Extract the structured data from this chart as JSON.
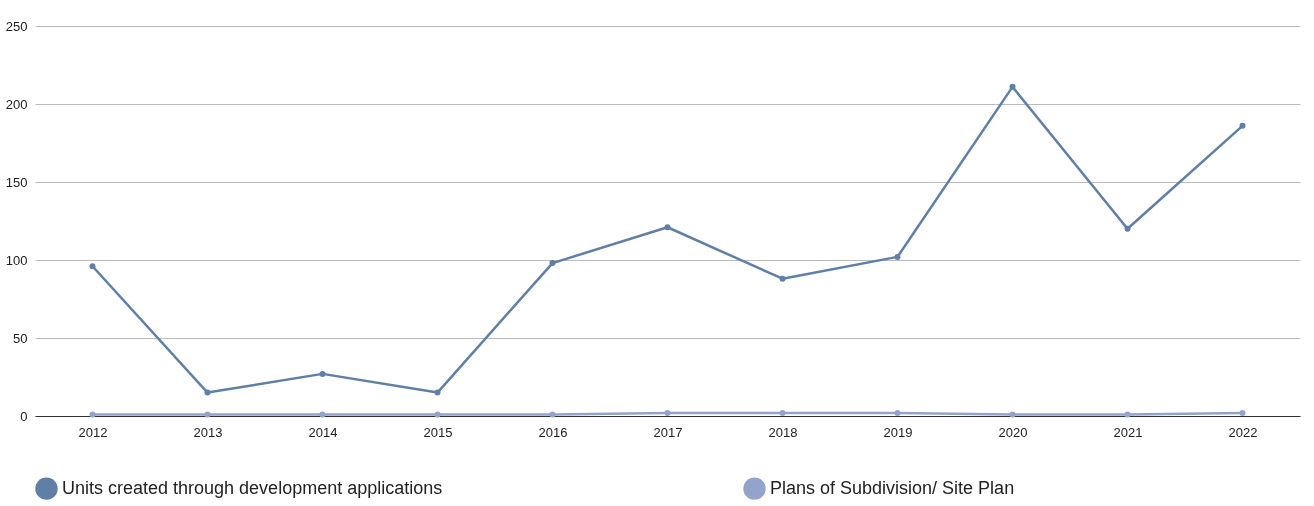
{
  "chart_data": {
    "type": "line",
    "categories": [
      "2012",
      "2013",
      "2014",
      "2015",
      "2016",
      "2017",
      "2018",
      "2019",
      "2020",
      "2021",
      "2022"
    ],
    "series": [
      {
        "name": "Units created through development applications",
        "color": "#5f7fa6",
        "values": [
          96,
          15,
          27,
          15,
          98,
          121,
          88,
          102,
          211,
          120,
          186
        ]
      },
      {
        "name": "Plans of Subdivision/ Site Plan",
        "color": "#93a3cc",
        "values": [
          1,
          1,
          1,
          1,
          1,
          2,
          2,
          2,
          1,
          1,
          2
        ]
      }
    ],
    "ylim": [
      0,
      250
    ],
    "yticks": [
      0,
      50,
      100,
      150,
      200,
      250
    ],
    "grid": "y",
    "legend": "bottom",
    "marker": "circle"
  }
}
